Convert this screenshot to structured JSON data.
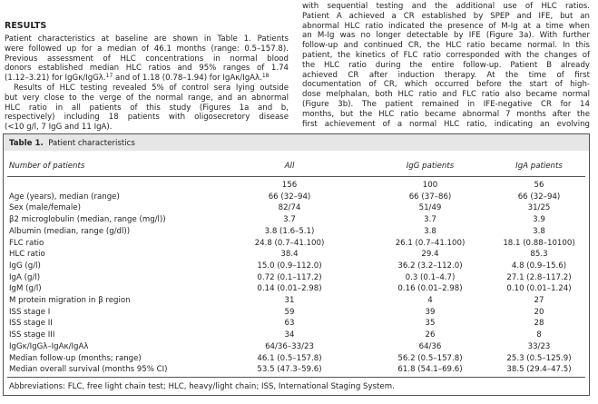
{
  "left": {
    "heading": "RESULTS",
    "lines": [
      [
        "Patient characteristics at baseline are shown in Table 1. Patients"
      ],
      [
        "were followed up for a median of 46.1 months (range: 0.5–157.8)."
      ],
      [
        "Previous assessment of HLC concentrations in normal blood"
      ],
      [
        "donors established median HLC ratios and 95% ranges of 1.74"
      ],
      [
        "(1.12–3.21) for IgGκ/IgGλ.",
        "17",
        " and of 1.18 (0.78–1.94) for IgAκ/IgAλ.",
        "18"
      ],
      [
        "Results of HLC testing revealed 5% of control sera lying outside"
      ],
      [
        "but very close to the verge of the normal range, and an abnormal"
      ],
      [
        "HLC ratio in all patients of this study (Figures 1a and b,"
      ],
      [
        "respectively) including 18 patients with oligosecretory disease"
      ],
      [
        "(<10 g/l, 7 IgG and 11 IgA)."
      ]
    ]
  },
  "right": {
    "lines": [
      [
        "with sequential testing and the additional use of HLC ratios."
      ],
      [
        "Patient A achieved a CR established by SPEP and IFE, but an"
      ],
      [
        "abnormal HLC ratio indicated the presence of M-Ig at a time when"
      ],
      [
        "an M-Ig was no longer detectable by IFE (Figure 3a). With further"
      ],
      [
        "follow-up and continued CR, the HLC ratio became normal. In this"
      ],
      [
        "patient, the kinetics of FLC ratio corresponded with the changes of"
      ],
      [
        "the HLC ratio during the entire follow-up. Patient B already"
      ],
      [
        "achieved CR after induction therapy. At the time of first"
      ],
      [
        "documentation of CR, which occurred before the start of high-"
      ],
      [
        "dose melphalan, both HLC ratio and FLC ratio also became normal"
      ],
      [
        "(Figure 3b). The patient remained in IFE-negative CR for 14"
      ],
      [
        "months, but the HLC ratio became abnormal 7 months after the"
      ],
      [
        "first achievement of a normal HLC ratio, indicating an evolving"
      ]
    ]
  },
  "table": {
    "title": "Table 1.",
    "subtitle": "Patient characteristics",
    "header": [
      "Number of patients",
      "All",
      "IgG patients",
      "IgA patients"
    ],
    "rows": [
      [
        null,
        "156",
        "100",
        "56"
      ],
      [
        "Age (years), median (range)",
        "66 (32–94)",
        "66 (37–86)",
        "66 (32–94)"
      ],
      [
        "Sex (male/female)",
        "82/74",
        "51/49",
        "31/25"
      ],
      [
        "β2 microglobulin (median, range (mg/l))",
        "3.7",
        "3.7",
        "3.9"
      ],
      [
        "Albumin (median, range (g/dl))",
        "3.8 (1.6–5.1)",
        "3.8",
        "3.8"
      ],
      [
        "FLC ratio",
        "24.8 (0.7–41.100)",
        "26.1 (0.7–41.100)",
        "18.1 (0.88–10100)"
      ],
      [
        "HLC ratio",
        "38.4",
        "29.4",
        "85.3"
      ],
      [
        "IgG (g/l)",
        "15.0 (0.9–112.0)",
        "36.2 (3.2–112.0)",
        "4.8 (0.9–15.6)"
      ],
      [
        "IgA (g/l)",
        "0.72 (0.1–117.2)",
        "0.3 (0.1–4.7)",
        "27.1 (2.8–117.2)"
      ],
      [
        "IgM (g/l)",
        "0.14 (0.01–2.98)",
        "0.16 (0.01–2.98)",
        "0.10 (0.01–1.24)"
      ],
      [
        "M protein migration in β region",
        "31",
        "4",
        "27"
      ],
      [
        "ISS stage I",
        "59",
        "39",
        "20"
      ],
      [
        "ISS stage II",
        "63",
        "35",
        "28"
      ],
      [
        "ISS stage III",
        "34",
        "26",
        "8"
      ],
      [
        "IgGκ/IgGλ–IgAκ/IgAλ",
        "64/36–33/23",
        "64/36",
        "33/23"
      ],
      [
        "Median follow-up (months; range)",
        "46.1 (0.5–157.8)",
        "56.2 (0.5–157.8)",
        "25.3 (0.5–125.9)"
      ],
      [
        "Median overall survival (months 95% CI)",
        "53.5 (47.3–59.6)",
        "61.8 (54.1–69.6)",
        "38.5 (29.4–47.5)"
      ]
    ],
    "footnote": "Abbreviations: FLC, free light chain test; HLC, heavy/light chain; ISS, International Staging System."
  }
}
